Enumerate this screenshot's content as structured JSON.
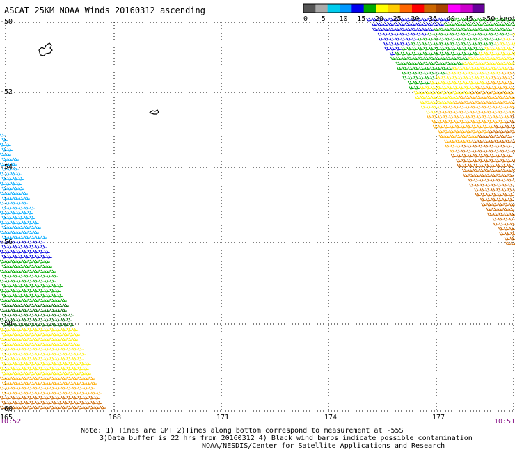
{
  "title": "ASCAT 25KM NOAA Winds 20160312 ascending",
  "legend": {
    "labels": [
      "0",
      "5",
      "10",
      "15",
      "20",
      "25",
      "30",
      "35",
      "40",
      "45",
      ">50 knots"
    ],
    "colors": [
      "#555555",
      "#aaaaaa",
      "#00ccee",
      "#0099ff",
      "#0000ee",
      "#00aa00",
      "#ffff00",
      "#ffcc00",
      "#ff6600",
      "#ff0000",
      "#cc6600",
      "#aa4400",
      "#ff00ff",
      "#cc00cc",
      "#660099"
    ]
  },
  "map": {
    "lat_labels": [
      "-50",
      "-52",
      "-54",
      "-56",
      "-58",
      "-60"
    ],
    "lon_labels": [
      "165",
      "168",
      "171",
      "174",
      "177"
    ],
    "time_left": "10:52",
    "time_right": "10:51"
  },
  "notes": {
    "line1": "Note: 1) Times are GMT 2)Times along bottom correspond to measurement at -55S",
    "line2": "3)Data buffer is 22 hrs from 20160312 4) Black wind barbs indicate possible contamination",
    "line3": "NOAA/NESDIS/Center for Satellite Applications and Research"
  },
  "palette": {
    "blue_light": "#00aaff",
    "blue": "#0000dd",
    "green": "#00aa00",
    "green_dark": "#006600",
    "yellow": "#ffee00",
    "orange": "#ffaa00",
    "brown": "#cc6600"
  }
}
